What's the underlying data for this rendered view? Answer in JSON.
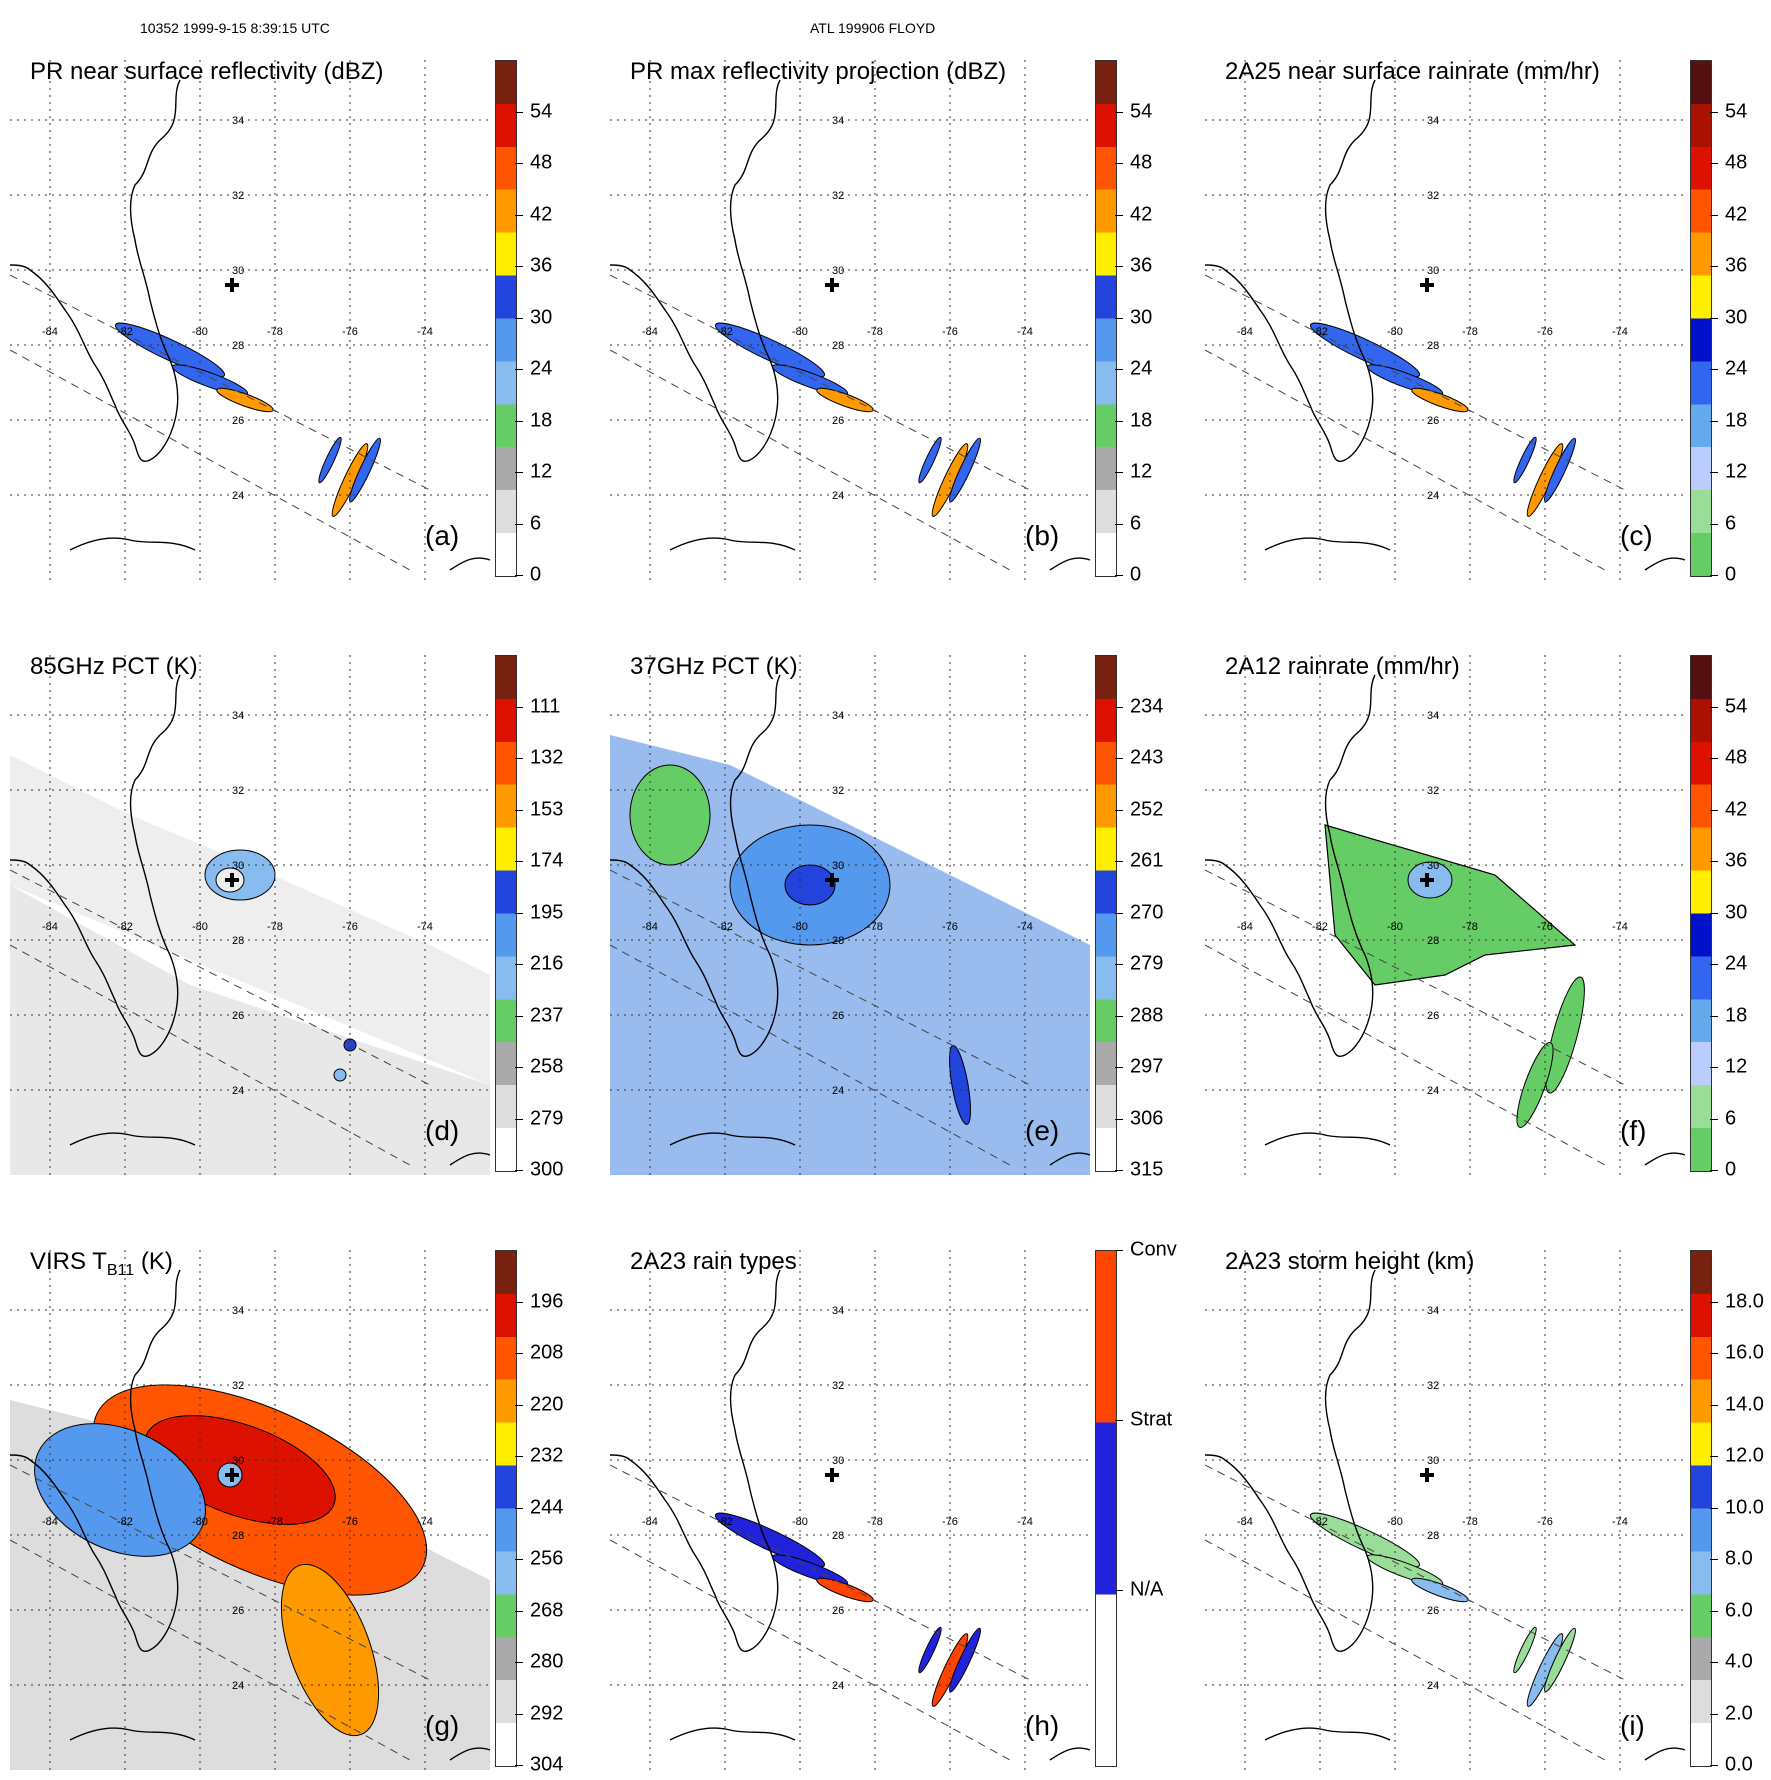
{
  "header": {
    "left": "10352 1999-9-15 8:39:15 UTC",
    "center": "ATL 199906 FLOYD"
  },
  "lat_labels": [
    "34",
    "32",
    "30",
    "28",
    "26",
    "24"
  ],
  "lon_labels": [
    "-84",
    "-82",
    "-80",
    "-78",
    "-76",
    "-74"
  ],
  "panels": [
    {
      "title": "PR near surface reflectivity (dBZ)",
      "label": "(a)",
      "ticks": [
        "54",
        "48",
        "42",
        "36",
        "30",
        "24",
        "18",
        "12",
        "6",
        "0"
      ],
      "palette": "dbz",
      "fill": "swath_sparse"
    },
    {
      "title": "PR max reflectivity projection (dBZ)",
      "label": "(b)",
      "ticks": [
        "54",
        "48",
        "42",
        "36",
        "30",
        "24",
        "18",
        "12",
        "6",
        "0"
      ],
      "palette": "dbz",
      "fill": "swath_sparse"
    },
    {
      "title": "2A25 near surface rainrate (mm/hr)",
      "label": "(c)",
      "ticks": [
        "54",
        "48",
        "42",
        "36",
        "30",
        "24",
        "18",
        "12",
        "6",
        "0"
      ],
      "palette": "rain",
      "fill": "swath_sparse"
    },
    {
      "title": "85GHz PCT (K)",
      "label": "(d)",
      "ticks": [
        "111",
        "132",
        "153",
        "174",
        "195",
        "216",
        "237",
        "258",
        "279",
        "300"
      ],
      "palette": "pct",
      "fill": "wide_gray"
    },
    {
      "title": "37GHz PCT (K)",
      "label": "(e)",
      "ticks": [
        "234",
        "243",
        "252",
        "261",
        "270",
        "279",
        "288",
        "297",
        "306",
        "315"
      ],
      "palette": "pct",
      "fill": "wide_blue"
    },
    {
      "title": "2A12 rainrate (mm/hr)",
      "label": "(f)",
      "ticks": [
        "54",
        "48",
        "42",
        "36",
        "30",
        "24",
        "18",
        "12",
        "6",
        "0"
      ],
      "palette": "rain",
      "fill": "wide_green"
    },
    {
      "title": "VIRS T",
      "title_sub": "B11",
      "title_tail": " (K)",
      "label": "(g)",
      "ticks": [
        "196",
        "208",
        "220",
        "232",
        "244",
        "256",
        "268",
        "280",
        "292",
        "304"
      ],
      "palette": "ir",
      "fill": "wide_ir"
    },
    {
      "title": "2A23 rain types",
      "label": "(h)",
      "ticks": [
        "Conv",
        "Strat",
        "N/A"
      ],
      "palette": "types",
      "fill": "swath_types"
    },
    {
      "title": "2A23 storm height (km)",
      "label": "(i)",
      "ticks": [
        "18.0",
        "16.0",
        "14.0",
        "12.0",
        "10.0",
        "8.0",
        "6.0",
        "4.0",
        "2.0",
        "0.0"
      ],
      "palette": "height",
      "fill": "swath_height"
    }
  ],
  "palettes": {
    "dbz": [
      "#ffffff",
      "#dddddd",
      "#aaaaaa",
      "#66cc66",
      "#88bbee",
      "#5599ee",
      "#2244dd",
      "#ffee00",
      "#ff9900",
      "#ff5500",
      "#dd1100",
      "#772211"
    ],
    "rain": [
      "#66cc66",
      "#99dd99",
      "#bbccff",
      "#66aaee",
      "#3366ee",
      "#0011cc",
      "#ffee00",
      "#ff9900",
      "#ff5500",
      "#dd1100",
      "#aa1100",
      "#551111"
    ],
    "pct": [
      "#ffffff",
      "#dddddd",
      "#aaaaaa",
      "#66cc66",
      "#88bbee",
      "#5599ee",
      "#2244dd",
      "#ffee00",
      "#ff9900",
      "#ff5500",
      "#dd1100",
      "#772211"
    ],
    "ir": [
      "#ffffff",
      "#dddddd",
      "#aaaaaa",
      "#66cc66",
      "#88bbee",
      "#5599ee",
      "#2244dd",
      "#ffee00",
      "#ff9900",
      "#ff5500",
      "#dd1100",
      "#772211"
    ],
    "height": [
      "#ffffff",
      "#dddddd",
      "#aaaaaa",
      "#66cc66",
      "#88bbee",
      "#5599ee",
      "#2244dd",
      "#ffee00",
      "#ff9900",
      "#ff5500",
      "#dd1100",
      "#772211"
    ],
    "types": [
      "#ffffff",
      "#ffffff",
      "#2222dd",
      "#2222dd",
      "#ff4400",
      "#ff4400"
    ]
  }
}
